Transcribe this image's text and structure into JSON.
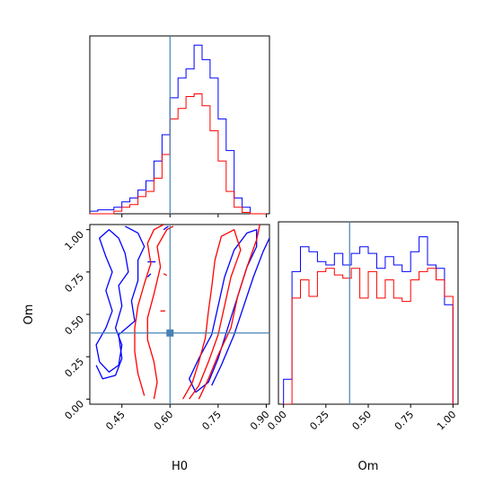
{
  "colors": {
    "series_a": "#0000ff",
    "series_b": "#ff0000",
    "truth": "#4682b4",
    "frame": "#000000",
    "background": "#ffffff"
  },
  "chart_data": [
    {
      "type": "histogram",
      "panel": "top-left",
      "xlabel": "",
      "ylabel": "",
      "xlim": [
        0.35,
        0.91
      ],
      "bin_edges": [
        0.35,
        0.375,
        0.4,
        0.425,
        0.45,
        0.475,
        0.5,
        0.525,
        0.55,
        0.575,
        0.6,
        0.625,
        0.65,
        0.675,
        0.7,
        0.725,
        0.75,
        0.775,
        0.8,
        0.825,
        0.85,
        0.875,
        0.9
      ],
      "series": [
        {
          "color": "blue",
          "counts": [
            2,
            3,
            3,
            5,
            9,
            12,
            18,
            25,
            40,
            60,
            88,
            103,
            110,
            128,
            117,
            103,
            72,
            48,
            12,
            5,
            0,
            0
          ]
        },
        {
          "color": "red",
          "counts": [
            0,
            0,
            0,
            2,
            5,
            7,
            13,
            17,
            27,
            45,
            72,
            80,
            89,
            91,
            82,
            63,
            40,
            17,
            5,
            1,
            0,
            0
          ]
        }
      ],
      "truth_x": 0.6
    },
    {
      "type": "contour",
      "panel": "bottom-left",
      "xlabel": "H0",
      "ylabel": "Om",
      "xlim": [
        0.35,
        0.91
      ],
      "ylim": [
        -0.03,
        1.03
      ],
      "xticks": [
        "0.45",
        "0.60",
        "0.75",
        "0.90"
      ],
      "yticks": [
        "0.00",
        "0.25",
        "0.50",
        "0.75",
        "1.00"
      ],
      "series": [
        {
          "color": "blue",
          "contours": [
            [
              [
                0.73,
                0.08
              ],
              [
                0.76,
                0.2
              ],
              [
                0.8,
                0.38
              ],
              [
                0.83,
                0.55
              ],
              [
                0.86,
                0.72
              ],
              [
                0.89,
                0.87
              ],
              [
                0.91,
                0.95
              ]
            ],
            [
              [
                0.68,
                0.04
              ],
              [
                0.66,
                0.12
              ],
              [
                0.69,
                0.24
              ],
              [
                0.73,
                0.38
              ],
              [
                0.75,
                0.55
              ],
              [
                0.77,
                0.72
              ],
              [
                0.8,
                0.88
              ],
              [
                0.84,
                0.98
              ],
              [
                0.87,
                1.0
              ],
              [
                0.87,
                0.9
              ],
              [
                0.84,
                0.78
              ],
              [
                0.81,
                0.6
              ],
              [
                0.78,
                0.42
              ],
              [
                0.75,
                0.24
              ],
              [
                0.72,
                0.1
              ],
              [
                0.68,
                0.04
              ]
            ],
            [
              [
                0.38,
                0.22
              ],
              [
                0.41,
                0.16
              ],
              [
                0.44,
                0.2
              ],
              [
                0.45,
                0.32
              ],
              [
                0.43,
                0.42
              ],
              [
                0.45,
                0.55
              ],
              [
                0.44,
                0.67
              ],
              [
                0.47,
                0.75
              ],
              [
                0.46,
                0.86
              ],
              [
                0.44,
                0.95
              ],
              [
                0.41,
                1.0
              ],
              [
                0.38,
                0.95
              ],
              [
                0.4,
                0.84
              ],
              [
                0.42,
                0.75
              ],
              [
                0.4,
                0.64
              ],
              [
                0.42,
                0.52
              ],
              [
                0.4,
                0.42
              ],
              [
                0.37,
                0.32
              ],
              [
                0.38,
                0.22
              ]
            ],
            [
              [
                0.37,
                0.2
              ],
              [
                0.39,
                0.12
              ],
              [
                0.43,
                0.14
              ],
              [
                0.45,
                0.24
              ],
              [
                0.44,
                0.38
              ],
              [
                0.49,
                0.46
              ],
              [
                0.48,
                0.58
              ],
              [
                0.5,
                0.7
              ],
              [
                0.5,
                0.82
              ],
              [
                0.52,
                0.9
              ],
              [
                0.5,
                0.98
              ],
              [
                0.46,
                1.02
              ]
            ],
            [
              [
                0.53,
                0.81
              ],
              [
                0.555,
                0.81
              ]
            ],
            [
              [
                0.53,
                0.72
              ],
              [
                0.54,
                0.74
              ]
            ],
            [
              [
                0.58,
                1.0
              ],
              [
                0.595,
                1.02
              ]
            ]
          ]
        },
        {
          "color": "red",
          "contours": [
            [
              [
                0.55,
                0.0
              ],
              [
                0.56,
                0.1
              ],
              [
                0.55,
                0.22
              ],
              [
                0.53,
                0.35
              ],
              [
                0.53,
                0.48
              ],
              [
                0.55,
                0.62
              ],
              [
                0.57,
                0.78
              ],
              [
                0.56,
                0.9
              ],
              [
                0.59,
                1.0
              ],
              [
                0.61,
                1.02
              ]
            ],
            [
              [
                0.52,
                0.02
              ],
              [
                0.5,
                0.15
              ],
              [
                0.49,
                0.28
              ],
              [
                0.49,
                0.42
              ],
              [
                0.5,
                0.55
              ],
              [
                0.52,
                0.68
              ],
              [
                0.54,
                0.8
              ],
              [
                0.53,
                0.92
              ],
              [
                0.55,
                1.0
              ],
              [
                0.58,
                1.03
              ]
            ],
            [
              [
                0.64,
                0.0
              ],
              [
                0.67,
                0.1
              ],
              [
                0.69,
                0.22
              ],
              [
                0.71,
                0.36
              ],
              [
                0.72,
                0.52
              ],
              [
                0.73,
                0.66
              ],
              [
                0.74,
                0.82
              ],
              [
                0.76,
                0.96
              ],
              [
                0.8,
                1.0
              ],
              [
                0.82,
                0.88
              ],
              [
                0.79,
                0.72
              ],
              [
                0.77,
                0.55
              ],
              [
                0.75,
                0.38
              ],
              [
                0.72,
                0.22
              ],
              [
                0.69,
                0.08
              ],
              [
                0.66,
                0.0
              ]
            ],
            [
              [
                0.69,
                0.0
              ],
              [
                0.72,
                0.12
              ],
              [
                0.75,
                0.26
              ],
              [
                0.79,
                0.42
              ],
              [
                0.81,
                0.6
              ],
              [
                0.84,
                0.78
              ],
              [
                0.87,
                0.94
              ],
              [
                0.88,
                1.03
              ]
            ],
            [
              [
                0.58,
                0.74
              ],
              [
                0.59,
                0.73
              ]
            ],
            [
              [
                0.57,
                0.52
              ],
              [
                0.585,
                0.52
              ]
            ]
          ]
        }
      ],
      "truth_x": 0.6,
      "truth_y": 0.39
    },
    {
      "type": "histogram",
      "panel": "bottom-right",
      "xlabel": "Om",
      "ylabel": "",
      "xlim": [
        -0.03,
        1.03
      ],
      "xticks": [
        "0.00",
        "0.25",
        "0.50",
        "0.75",
        "1.00"
      ],
      "bin_edges": [
        0.0,
        0.05,
        0.1,
        0.15,
        0.2,
        0.25,
        0.3,
        0.35,
        0.4,
        0.45,
        0.5,
        0.55,
        0.6,
        0.65,
        0.7,
        0.75,
        0.8,
        0.85,
        0.9,
        0.95,
        1.0
      ],
      "series": [
        {
          "color": "blue",
          "counts": [
            15,
            80,
            95,
            92,
            86,
            84,
            91,
            84,
            91,
            95,
            91,
            82,
            89,
            84,
            80,
            92,
            101,
            84,
            82,
            60
          ]
        },
        {
          "color": "red",
          "counts": [
            0,
            64,
            75,
            65,
            80,
            82,
            78,
            76,
            82,
            64,
            80,
            64,
            75,
            64,
            62,
            75,
            80,
            82,
            75,
            65
          ]
        }
      ],
      "truth_x": 0.39
    }
  ]
}
